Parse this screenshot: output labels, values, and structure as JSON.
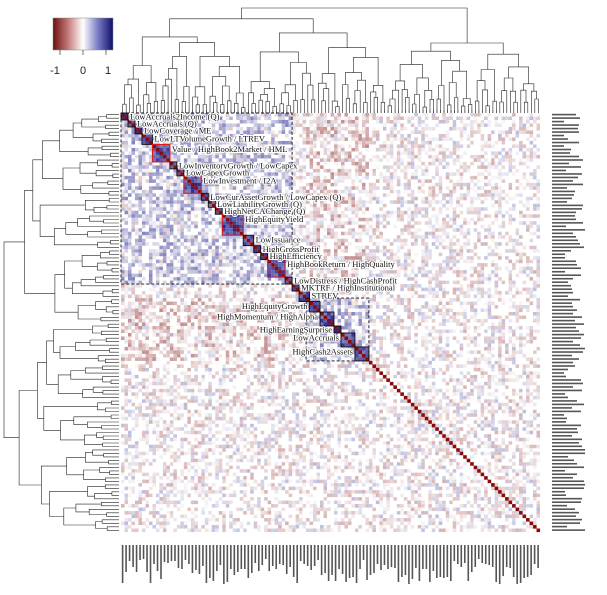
{
  "chart_data": {
    "type": "heatmap",
    "title": "",
    "description_of_axes": "",
    "n_factors": 120,
    "value_range": [
      -1,
      1
    ],
    "colormap": {
      "low": "#8b1a1a",
      "mid": "#ffffff",
      "high": "#1a1a8b"
    },
    "legend": {
      "ticks": [
        "-1",
        "0",
        "1"
      ],
      "placement": "top-left"
    },
    "dendrograms": [
      "top",
      "left"
    ],
    "clusters": [
      {
        "label": "LowAccruals2Income (Q)",
        "start": 0,
        "end": 1
      },
      {
        "label": "LowAccruals (Q)",
        "start": 2,
        "end": 3
      },
      {
        "label": "LowCoverage / ME",
        "start": 4,
        "end": 5
      },
      {
        "label": "LowLTVolumeGrowth / LTREV",
        "start": 6,
        "end": 8
      },
      {
        "label": "Value / HighBook2Market / HML",
        "start": 9,
        "end": 13,
        "outlined": true
      },
      {
        "label": "LowInventoryGrowth / LowCapex",
        "start": 14,
        "end": 15
      },
      {
        "label": "LowCapexGrowth",
        "start": 16,
        "end": 17
      },
      {
        "label": "LowInvestment / I2A",
        "start": 18,
        "end": 22,
        "outlined": true
      },
      {
        "label": "LowCurAssetGrowth / LowCapex (Q)",
        "start": 23,
        "end": 24
      },
      {
        "label": "LowLiabilityGrowth (Q)",
        "start": 25,
        "end": 26
      },
      {
        "label": "HighNetCAChange (Q)",
        "start": 27,
        "end": 28
      },
      {
        "label": "HighEquityYield",
        "start": 29,
        "end": 34,
        "outlined": true
      },
      {
        "label": "LowIssuance",
        "start": 35,
        "end": 37
      },
      {
        "label": "HighGrossProfit",
        "start": 38,
        "end": 39
      },
      {
        "label": "HighEfficiency",
        "start": 40,
        "end": 41
      },
      {
        "label": "HighBookReturn / HighQuality",
        "start": 42,
        "end": 46,
        "outlined": true
      },
      {
        "label": "LowDistress / HighCashProfit",
        "start": 47,
        "end": 48
      },
      {
        "label": "MKTRF / HighInstitutional",
        "start": 49,
        "end": 50
      },
      {
        "label": "STREV",
        "start": 51,
        "end": 53
      },
      {
        "label": "HighEquityGrowth",
        "start": 54,
        "end": 56
      },
      {
        "label": "HighMomentum / HighAlpha",
        "start": 57,
        "end": 60
      },
      {
        "label": "HighEarningSurprise",
        "start": 61,
        "end": 62
      },
      {
        "label": "LowAccruals",
        "start": 63,
        "end": 66
      },
      {
        "label": "HighCash2Assets",
        "start": 67,
        "end": 70
      }
    ],
    "blocks": [
      {
        "name": "block-1",
        "start": 0,
        "end": 48
      },
      {
        "name": "block-2",
        "start": 53,
        "end": 70
      }
    ]
  }
}
